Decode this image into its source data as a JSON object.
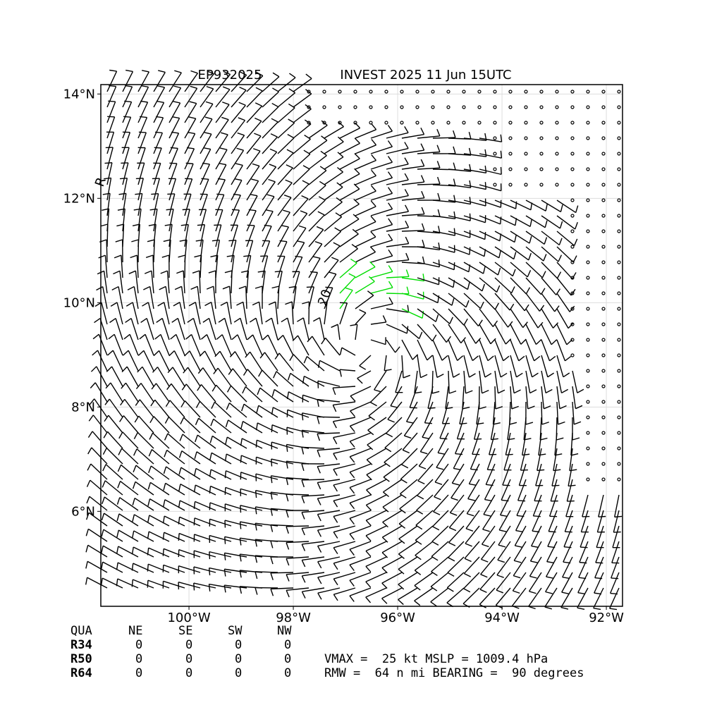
{
  "map": {
    "title_left": "EP932025",
    "title_right": "INVEST 2025 11 Jun 15UTC",
    "xlim": [
      -101.69,
      -91.69
    ],
    "ylim": [
      4.18,
      14.18
    ],
    "xticks": [
      {
        "value": -100,
        "label": "100°W"
      },
      {
        "value": -98,
        "label": "98°W"
      },
      {
        "value": -96,
        "label": "96°W"
      },
      {
        "value": -94,
        "label": "94°W"
      },
      {
        "value": -92,
        "label": "92°W"
      }
    ],
    "yticks": [
      {
        "value": 6,
        "label": "6°N"
      },
      {
        "value": 8,
        "label": "8°N"
      },
      {
        "value": 10,
        "label": "10°N"
      },
      {
        "value": 12,
        "label": "12°N"
      },
      {
        "value": 14,
        "label": "14°N"
      }
    ],
    "contour_label": "20",
    "edge_label": "R"
  },
  "table": {
    "header": [
      "QUA",
      "NE",
      "SE",
      "SW",
      "NW"
    ],
    "rows": [
      [
        "R34",
        "0",
        "0",
        "0",
        "0"
      ],
      [
        "R50",
        "0",
        "0",
        "0",
        "0"
      ],
      [
        "R64",
        "0",
        "0",
        "0",
        "0"
      ]
    ]
  },
  "info": [
    "VMAX =  25 kt MSLP = 1009.4 hPa",
    "RMW =  64 n mi BEARING =  90 degrees"
  ]
}
